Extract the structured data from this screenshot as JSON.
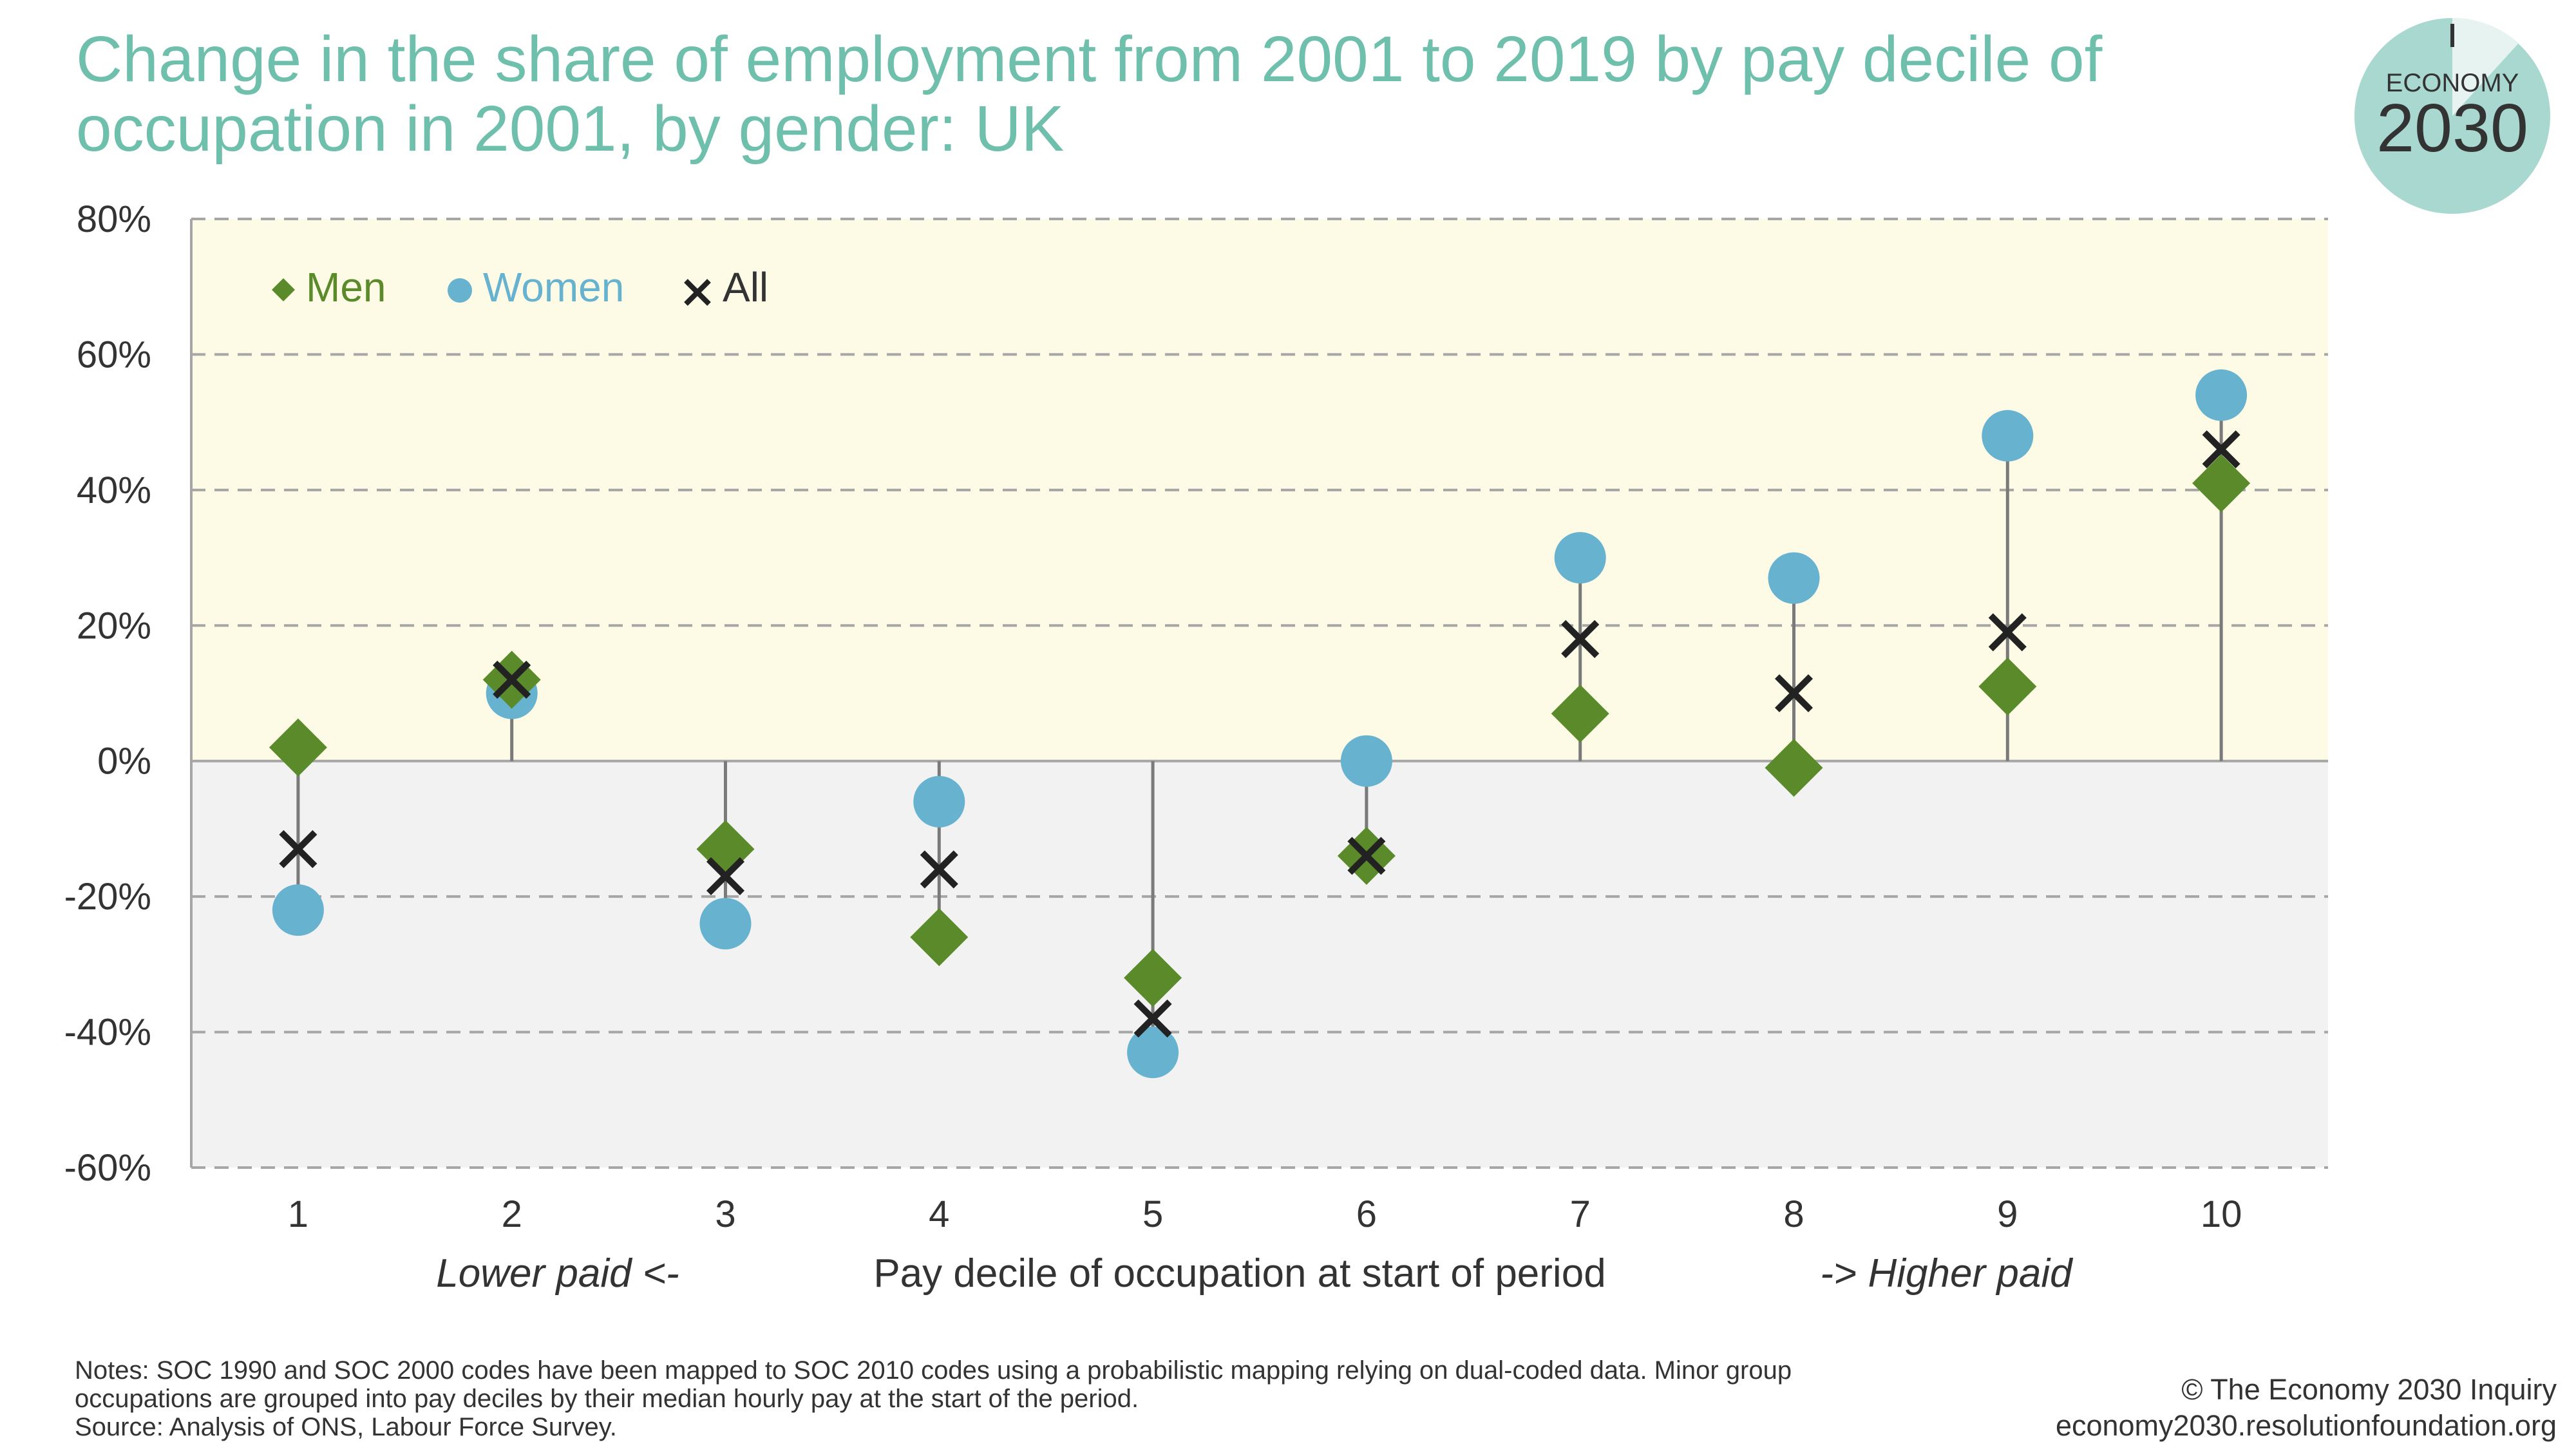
{
  "title": "Change in the share of employment from 2001 to 2019 by pay decile of occupation in 2001, by gender: UK",
  "logo": {
    "line1": "ECONOMY",
    "line2": "2030"
  },
  "notes": [
    "Notes: SOC 1990 and SOC 2000 codes have been mapped to SOC 2010 codes using a probabilistic mapping relying on dual-coded data. Minor group",
    "occupations are grouped into pay deciles by their median hourly pay at the start of the period.",
    "Source: Analysis of ONS, Labour Force Survey."
  ],
  "credit": {
    "line1": "© The Economy 2030 Inquiry",
    "line2": "economy2030.resolutionfoundation.org"
  },
  "colors": {
    "title": "#6fbfad",
    "men": "#5a8a2a",
    "women": "#66b2cf",
    "all": "#222222",
    "positive_band": "#fdfbe6",
    "negative_band": "#f2f2f2",
    "grid": "#a6a6a6",
    "stem": "#7a7a7a",
    "logo": "#a8d8cf"
  },
  "chart_data": {
    "type": "scatter",
    "title": "Change in the share of employment from 2001 to 2019 by pay decile of occupation in 2001, by gender: UK",
    "x": [
      "1",
      "2",
      "3",
      "4",
      "5",
      "6",
      "7",
      "8",
      "9",
      "10"
    ],
    "series": [
      {
        "name": "Men",
        "marker": "diamond",
        "values": [
          2,
          12,
          -13,
          -26,
          -32,
          -14,
          7,
          -1,
          11,
          41
        ]
      },
      {
        "name": "Women",
        "marker": "circle",
        "values": [
          -22,
          10,
          -24,
          -6,
          -43,
          0,
          30,
          27,
          48,
          54
        ]
      },
      {
        "name": "All",
        "marker": "x",
        "values": [
          -13,
          12,
          -17,
          -16,
          -38,
          -14,
          18,
          10,
          19,
          46
        ]
      }
    ],
    "ylim": [
      -60,
      80
    ],
    "yticks": [
      "80%",
      "60%",
      "40%",
      "20%",
      "0%",
      "-20%",
      "-40%",
      "-60%"
    ],
    "xlabel": "Pay decile of occupation at start of period",
    "xlabel_left": "Lower paid <-",
    "xlabel_right": "-> Higher paid",
    "ylabel": "",
    "grid": true,
    "legend_position": "top-left"
  }
}
